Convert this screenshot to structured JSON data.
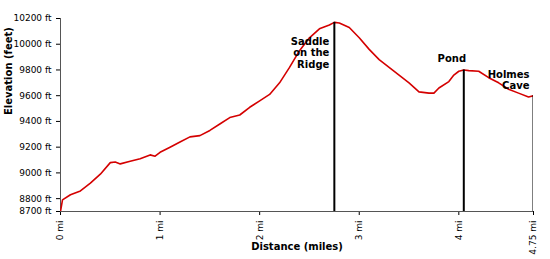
{
  "chart_data": {
    "type": "line",
    "x_label": "Distance (miles)",
    "y_label": "Elevation (feet)",
    "color": "#d40000",
    "grid": false,
    "x": [
      0,
      0.02,
      0.1,
      0.2,
      0.3,
      0.4,
      0.5,
      0.55,
      0.6,
      0.7,
      0.8,
      0.9,
      0.95,
      1.0,
      1.1,
      1.2,
      1.3,
      1.4,
      1.5,
      1.6,
      1.7,
      1.8,
      1.9,
      2.0,
      2.1,
      2.2,
      2.3,
      2.4,
      2.5,
      2.6,
      2.7,
      2.75,
      2.8,
      2.9,
      3.0,
      3.1,
      3.2,
      3.3,
      3.4,
      3.5,
      3.6,
      3.7,
      3.75,
      3.8,
      3.9,
      3.95,
      4.0,
      4.05,
      4.1,
      4.2,
      4.3,
      4.4,
      4.5,
      4.6,
      4.7,
      4.75
    ],
    "values": [
      8700,
      8790,
      8830,
      8860,
      8920,
      8990,
      9080,
      9085,
      9070,
      9090,
      9110,
      9140,
      9130,
      9160,
      9200,
      9240,
      9280,
      9290,
      9330,
      9380,
      9430,
      9450,
      9510,
      9560,
      9610,
      9700,
      9820,
      9950,
      10050,
      10120,
      10150,
      10170,
      10165,
      10130,
      10050,
      9960,
      9880,
      9820,
      9760,
      9700,
      9630,
      9620,
      9620,
      9660,
      9710,
      9760,
      9790,
      9800,
      9795,
      9790,
      9740,
      9700,
      9650,
      9620,
      9590,
      9600
    ],
    "xlim": [
      0,
      4.75
    ],
    "xticks": [
      {
        "value": 0,
        "label": "0 mi"
      },
      {
        "value": 1,
        "label": "1 mi"
      },
      {
        "value": 2,
        "label": "2 mi"
      },
      {
        "value": 3,
        "label": "3 mi"
      },
      {
        "value": 4,
        "label": "4 mi"
      },
      {
        "value": 4.75,
        "label": "4.75 mi"
      }
    ],
    "ylim": [
      8700,
      10200
    ],
    "yticks": [
      {
        "value": 8700,
        "label": "8700 ft"
      },
      {
        "value": 8800,
        "label": "8800 ft"
      },
      {
        "value": 9000,
        "label": "9000 ft"
      },
      {
        "value": 9200,
        "label": "9200 ft"
      },
      {
        "value": 9400,
        "label": "9400 ft"
      },
      {
        "value": 9600,
        "label": "9600 ft"
      },
      {
        "value": 9800,
        "label": "9800 ft"
      },
      {
        "value": 10000,
        "label": "10000 ft"
      },
      {
        "value": 10200,
        "label": "10200 ft"
      }
    ],
    "annotations": [
      {
        "x": 2.75,
        "y": 10170,
        "text": "Saddle\non the\nRidge"
      },
      {
        "x": 4.05,
        "y": 9800,
        "text": "Pond"
      },
      {
        "x": 4.75,
        "y": 9600,
        "text": "Holmes\nCave"
      }
    ]
  }
}
